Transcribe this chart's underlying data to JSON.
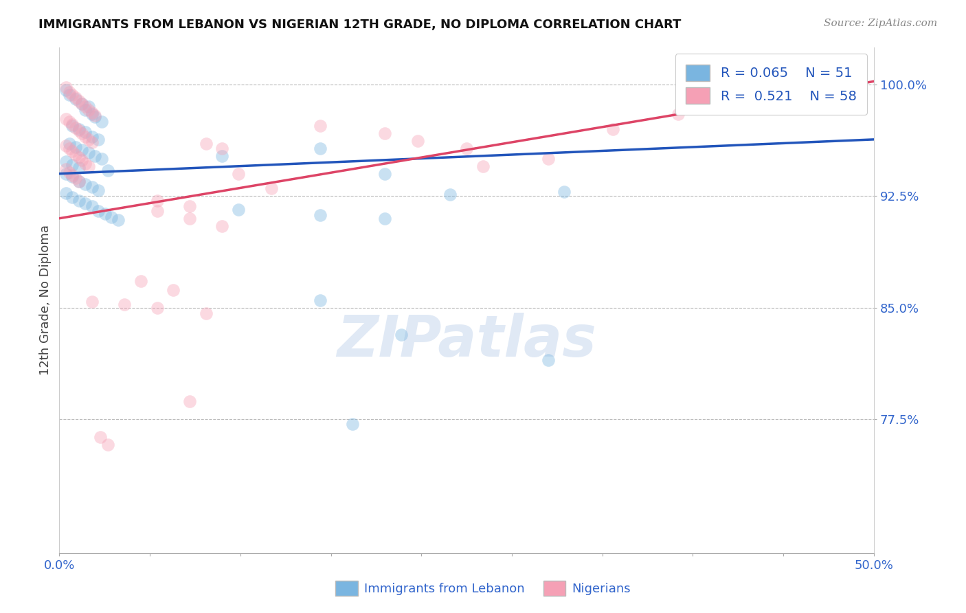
{
  "title": "IMMIGRANTS FROM LEBANON VS NIGERIAN 12TH GRADE, NO DIPLOMA CORRELATION CHART",
  "source_text": "Source: ZipAtlas.com",
  "ylabel": "12th Grade, No Diploma",
  "legend_blue_label": "Immigrants from Lebanon",
  "legend_pink_label": "Nigerians",
  "R_blue": 0.065,
  "N_blue": 51,
  "R_pink": 0.521,
  "N_pink": 58,
  "xlim": [
    0.0,
    0.5
  ],
  "ylim": [
    0.685,
    1.025
  ],
  "yticks": [
    0.775,
    0.85,
    0.925,
    1.0
  ],
  "ytick_labels": [
    "77.5%",
    "85.0%",
    "92.5%",
    "100.0%"
  ],
  "xtick_positions": [
    0.0,
    0.0556,
    0.1111,
    0.1667,
    0.2222,
    0.2778,
    0.3333,
    0.3889,
    0.4444,
    0.5
  ],
  "xtick_labels": [
    "0.0%",
    "",
    "",
    "",
    "",
    "",
    "",
    "",
    "",
    "50.0%"
  ],
  "watermark_text": "ZIPatlas",
  "blue_color": "#7ab5e0",
  "pink_color": "#f5a0b5",
  "blue_line_color": "#2255bb",
  "pink_line_color": "#dd4466",
  "background_color": "#ffffff",
  "grid_color": "#bbbbbb",
  "title_color": "#111111",
  "axis_label_color": "#444444",
  "tick_label_color": "#3366cc",
  "blue_scatter_x": [
    0.004,
    0.006,
    0.01,
    0.014,
    0.018,
    0.016,
    0.02,
    0.022,
    0.026,
    0.008,
    0.012,
    0.016,
    0.02,
    0.024,
    0.006,
    0.01,
    0.014,
    0.018,
    0.022,
    0.026,
    0.004,
    0.008,
    0.012,
    0.03,
    0.004,
    0.008,
    0.012,
    0.016,
    0.02,
    0.024,
    0.004,
    0.008,
    0.012,
    0.016,
    0.02,
    0.024,
    0.028,
    0.032,
    0.036,
    0.1,
    0.16,
    0.2,
    0.24,
    0.11,
    0.16,
    0.2,
    0.31,
    0.16,
    0.21,
    0.3,
    0.18
  ],
  "blue_scatter_y": [
    0.996,
    0.993,
    0.99,
    0.987,
    0.985,
    0.983,
    0.98,
    0.978,
    0.975,
    0.972,
    0.97,
    0.968,
    0.965,
    0.963,
    0.96,
    0.958,
    0.956,
    0.954,
    0.952,
    0.95,
    0.948,
    0.946,
    0.944,
    0.942,
    0.94,
    0.938,
    0.935,
    0.933,
    0.931,
    0.929,
    0.927,
    0.924,
    0.922,
    0.92,
    0.918,
    0.915,
    0.913,
    0.911,
    0.909,
    0.952,
    0.957,
    0.94,
    0.926,
    0.916,
    0.912,
    0.91,
    0.928,
    0.855,
    0.832,
    0.815,
    0.772
  ],
  "pink_scatter_x": [
    0.004,
    0.006,
    0.008,
    0.01,
    0.012,
    0.014,
    0.016,
    0.018,
    0.02,
    0.022,
    0.004,
    0.006,
    0.008,
    0.01,
    0.012,
    0.014,
    0.016,
    0.018,
    0.02,
    0.004,
    0.006,
    0.008,
    0.01,
    0.012,
    0.014,
    0.016,
    0.018,
    0.004,
    0.006,
    0.008,
    0.01,
    0.012,
    0.06,
    0.08,
    0.09,
    0.1,
    0.11,
    0.13,
    0.06,
    0.08,
    0.1,
    0.16,
    0.2,
    0.22,
    0.25,
    0.26,
    0.3,
    0.34,
    0.38,
    0.05,
    0.07,
    0.09,
    0.02,
    0.04,
    0.06,
    0.08,
    0.025,
    0.03
  ],
  "pink_scatter_y": [
    0.998,
    0.995,
    0.993,
    0.991,
    0.989,
    0.987,
    0.985,
    0.983,
    0.981,
    0.979,
    0.977,
    0.975,
    0.973,
    0.971,
    0.969,
    0.967,
    0.965,
    0.963,
    0.961,
    0.959,
    0.957,
    0.955,
    0.953,
    0.951,
    0.949,
    0.947,
    0.945,
    0.943,
    0.941,
    0.939,
    0.937,
    0.935,
    0.922,
    0.918,
    0.96,
    0.957,
    0.94,
    0.93,
    0.915,
    0.91,
    0.905,
    0.972,
    0.967,
    0.962,
    0.957,
    0.945,
    0.95,
    0.97,
    0.98,
    0.868,
    0.862,
    0.846,
    0.854,
    0.852,
    0.85,
    0.787,
    0.763,
    0.758
  ],
  "blue_line_x": [
    0.0,
    0.5
  ],
  "blue_line_y": [
    0.94,
    0.963
  ],
  "pink_line_x": [
    0.0,
    0.5
  ],
  "pink_line_y": [
    0.91,
    1.002
  ]
}
